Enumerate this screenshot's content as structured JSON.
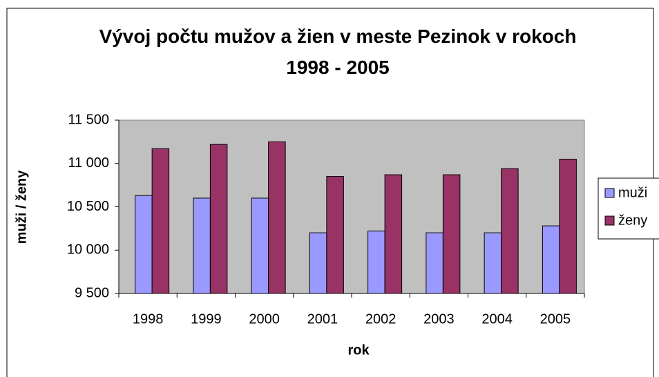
{
  "chart_data": {
    "type": "bar",
    "title": "Vývoj počtu mužov a žien v meste Pezinok v rokoch 1998 - 2005",
    "x_label": "rok",
    "y_label": "muži / ženy",
    "categories": [
      "1998",
      "1999",
      "2000",
      "2001",
      "2002",
      "2003",
      "2004",
      "2005"
    ],
    "series": [
      {
        "name": "muži",
        "color": "#9999ff",
        "values": [
          10630,
          10600,
          10600,
          10200,
          10220,
          10200,
          10200,
          10280
        ]
      },
      {
        "name": "ženy",
        "color": "#993366",
        "values": [
          11170,
          11220,
          11250,
          10850,
          10870,
          10870,
          10940,
          11050
        ]
      }
    ],
    "ylim": [
      9500,
      11500
    ],
    "yticks": [
      {
        "value": 9500,
        "label": "9 500"
      },
      {
        "value": 10000,
        "label": "10 000"
      },
      {
        "value": 10500,
        "label": "10 500"
      },
      {
        "value": 11000,
        "label": "11 000"
      },
      {
        "value": 11500,
        "label": "11 500"
      }
    ],
    "grid": false,
    "legend": "right"
  }
}
